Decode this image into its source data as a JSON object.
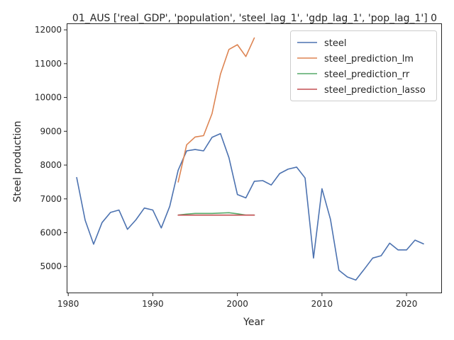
{
  "chart_data": {
    "type": "line",
    "title": "01_AUS ['real_GDP', 'population', 'steel_lag_1', 'gdp_lag_1', 'pop_lag_1'] 0",
    "xlabel": "Year",
    "ylabel": "Steel production",
    "xlim": [
      1979.9,
      2024.1
    ],
    "ylim": [
      4230,
      12170
    ],
    "xticks": [
      1980,
      1990,
      2000,
      2010,
      2020
    ],
    "xtick_labels": [
      "1980",
      "1990",
      "2000",
      "2010",
      "2020"
    ],
    "yticks": [
      5000,
      6000,
      7000,
      8000,
      9000,
      10000,
      11000,
      12000
    ],
    "ytick_labels": [
      "5000",
      "6000",
      "7000",
      "8000",
      "9000",
      "10000",
      "11000",
      "12000"
    ],
    "legend_position": "upper-right",
    "series": [
      {
        "name": "steel",
        "color": "#4c72b0",
        "x": [
          1981,
          1982,
          1983,
          1984,
          1985,
          1986,
          1987,
          1988,
          1989,
          1990,
          1991,
          1992,
          1993,
          1994,
          1995,
          1996,
          1997,
          1998,
          1999,
          2000,
          2001,
          2002,
          2003,
          2004,
          2005,
          2006,
          2007,
          2008,
          2009,
          2010,
          2011,
          2012,
          2013,
          2014,
          2015,
          2016,
          2017,
          2018,
          2019,
          2020,
          2021,
          2022
        ],
        "values": [
          7630,
          6370,
          5660,
          6300,
          6600,
          6670,
          6100,
          6380,
          6730,
          6670,
          6140,
          6780,
          7850,
          8420,
          8460,
          8420,
          8820,
          8930,
          8220,
          7130,
          7030,
          7520,
          7540,
          7410,
          7750,
          7880,
          7940,
          7620,
          5250,
          7300,
          6400,
          4890,
          4690,
          4600,
          4920,
          5250,
          5320,
          5690,
          5490,
          5490,
          5780,
          5670
        ]
      },
      {
        "name": "steel_prediction_lm",
        "color": "#dd8452",
        "x": [
          1993,
          1994,
          1995,
          1996,
          1997,
          1998,
          1999,
          2000,
          2001,
          2002
        ],
        "values": [
          7500,
          8600,
          8830,
          8870,
          9520,
          10690,
          11420,
          11560,
          11210,
          11760
        ]
      },
      {
        "name": "steel_prediction_rr",
        "color": "#55a868",
        "x": [
          1993,
          1994,
          1995,
          1996,
          1997,
          1998,
          1999,
          2000,
          2001,
          2002
        ],
        "values": [
          6520,
          6550,
          6570,
          6570,
          6570,
          6580,
          6590,
          6560,
          6520,
          6520
        ]
      },
      {
        "name": "steel_prediction_lasso",
        "color": "#c44e52",
        "x": [
          1993,
          1994,
          1995,
          1996,
          1997,
          1998,
          1999,
          2000,
          2001,
          2002
        ],
        "values": [
          6520,
          6520,
          6520,
          6520,
          6520,
          6520,
          6520,
          6520,
          6520,
          6520
        ]
      }
    ]
  }
}
